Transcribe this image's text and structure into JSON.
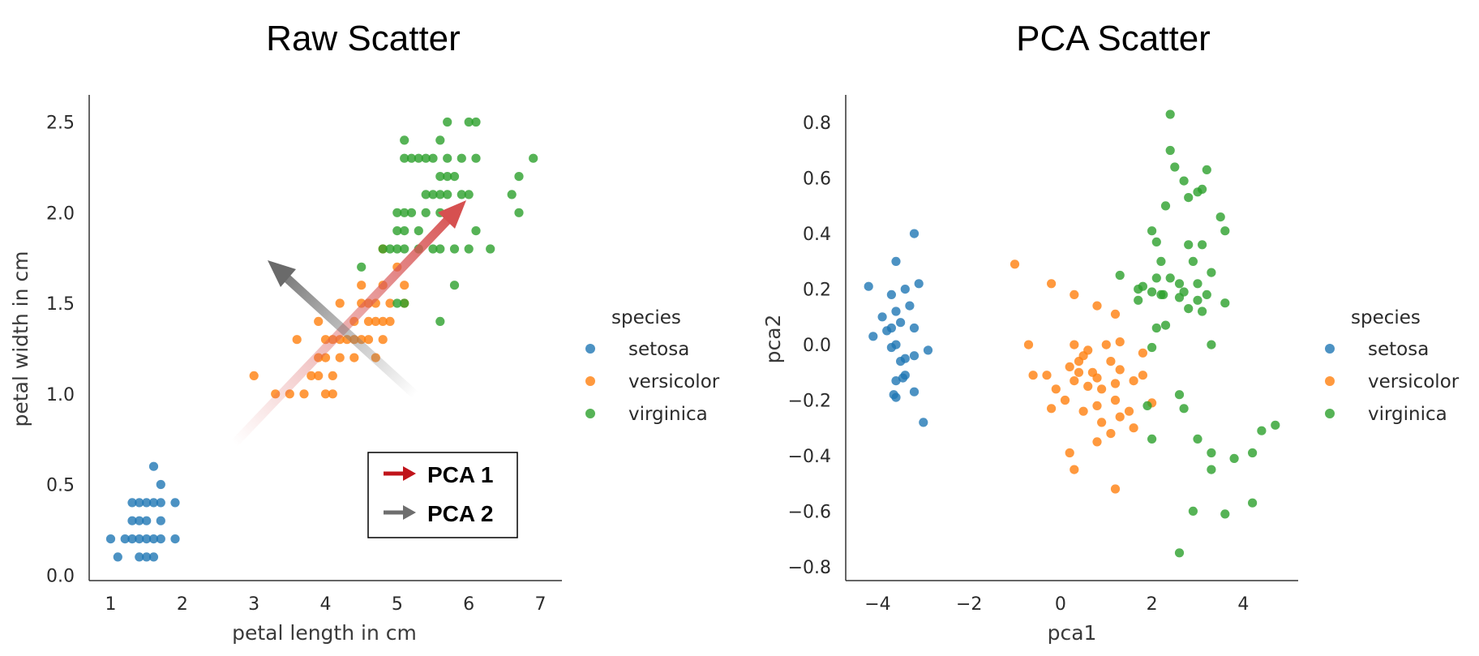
{
  "colors": {
    "setosa": "#1f77b4",
    "versicolor": "#ff7f0e",
    "virginica": "#2ca02c",
    "pca1_arrow": "#c0141b",
    "pca2_arrow": "#6e6e6e"
  },
  "chart_data": [
    {
      "type": "scatter",
      "title": "Raw Scatter",
      "xlabel": "petal length in cm",
      "ylabel": "petal width in cm",
      "xlim": [
        0.7,
        7.3
      ],
      "ylim": [
        -0.03,
        2.65
      ],
      "xticks": [
        1,
        2,
        3,
        4,
        5,
        6,
        7
      ],
      "xtick_labels": [
        "1",
        "2",
        "3",
        "4",
        "5",
        "6",
        "7"
      ],
      "yticks": [
        0.0,
        0.5,
        1.0,
        1.5,
        2.0,
        2.5
      ],
      "ytick_labels": [
        "0.0",
        "0.5",
        "1.0",
        "1.5",
        "2.0",
        "2.5"
      ],
      "grid": false,
      "legend": {
        "title": "species",
        "placement": "right",
        "entries": [
          "setosa",
          "versicolor",
          "virginica"
        ]
      },
      "series": [
        {
          "name": "setosa",
          "points": [
            [
              1.0,
              0.2
            ],
            [
              1.1,
              0.1
            ],
            [
              1.2,
              0.2
            ],
            [
              1.3,
              0.2
            ],
            [
              1.3,
              0.3
            ],
            [
              1.3,
              0.4
            ],
            [
              1.4,
              0.1
            ],
            [
              1.4,
              0.2
            ],
            [
              1.4,
              0.3
            ],
            [
              1.5,
              0.1
            ],
            [
              1.5,
              0.2
            ],
            [
              1.5,
              0.4
            ],
            [
              1.5,
              0.3
            ],
            [
              1.6,
              0.2
            ],
            [
              1.6,
              0.4
            ],
            [
              1.6,
              0.6
            ],
            [
              1.7,
              0.2
            ],
            [
              1.7,
              0.5
            ],
            [
              1.7,
              0.3
            ],
            [
              1.9,
              0.2
            ],
            [
              1.9,
              0.4
            ],
            [
              1.4,
              0.4
            ],
            [
              1.6,
              0.1
            ],
            [
              1.7,
              0.4
            ]
          ]
        },
        {
          "name": "versicolor",
          "points": [
            [
              3.0,
              1.1
            ],
            [
              3.3,
              1.0
            ],
            [
              3.5,
              1.0
            ],
            [
              3.6,
              1.3
            ],
            [
              3.7,
              1.0
            ],
            [
              3.8,
              1.1
            ],
            [
              3.9,
              1.1
            ],
            [
              3.9,
              1.2
            ],
            [
              3.9,
              1.4
            ],
            [
              4.0,
              1.0
            ],
            [
              4.0,
              1.2
            ],
            [
              4.0,
              1.3
            ],
            [
              4.1,
              1.0
            ],
            [
              4.1,
              1.3
            ],
            [
              4.2,
              1.2
            ],
            [
              4.2,
              1.3
            ],
            [
              4.2,
              1.5
            ],
            [
              4.3,
              1.3
            ],
            [
              4.4,
              1.2
            ],
            [
              4.4,
              1.3
            ],
            [
              4.4,
              1.4
            ],
            [
              4.5,
              1.3
            ],
            [
              4.5,
              1.5
            ],
            [
              4.5,
              1.6
            ],
            [
              4.6,
              1.3
            ],
            [
              4.6,
              1.4
            ],
            [
              4.6,
              1.5
            ],
            [
              4.7,
              1.2
            ],
            [
              4.7,
              1.4
            ],
            [
              4.7,
              1.5
            ],
            [
              4.8,
              1.4
            ],
            [
              4.8,
              1.8
            ],
            [
              4.9,
              1.5
            ],
            [
              5.0,
              1.7
            ],
            [
              5.1,
              1.6
            ],
            [
              4.1,
              1.1
            ],
            [
              4.8,
              1.6
            ],
            [
              4.8,
              1.3
            ],
            [
              4.9,
              1.4
            ],
            [
              5.1,
              1.5
            ]
          ]
        },
        {
          "name": "virginica",
          "points": [
            [
              4.5,
              1.7
            ],
            [
              4.8,
              1.8
            ],
            [
              4.9,
              1.8
            ],
            [
              5.0,
              1.5
            ],
            [
              5.0,
              1.9
            ],
            [
              5.0,
              2.0
            ],
            [
              5.1,
              1.5
            ],
            [
              5.1,
              1.8
            ],
            [
              5.1,
              1.9
            ],
            [
              5.1,
              2.0
            ],
            [
              5.1,
              2.3
            ],
            [
              5.1,
              2.4
            ],
            [
              5.2,
              2.0
            ],
            [
              5.2,
              2.3
            ],
            [
              5.3,
              1.9
            ],
            [
              5.3,
              2.3
            ],
            [
              5.4,
              2.1
            ],
            [
              5.4,
              2.3
            ],
            [
              5.5,
              1.8
            ],
            [
              5.5,
              2.1
            ],
            [
              5.6,
              1.4
            ],
            [
              5.6,
              1.8
            ],
            [
              5.6,
              2.1
            ],
            [
              5.6,
              2.2
            ],
            [
              5.6,
              2.4
            ],
            [
              5.7,
              2.1
            ],
            [
              5.7,
              2.3
            ],
            [
              5.7,
              2.5
            ],
            [
              5.8,
              1.6
            ],
            [
              5.8,
              1.8
            ],
            [
              5.8,
              2.2
            ],
            [
              5.9,
              2.1
            ],
            [
              5.9,
              2.3
            ],
            [
              6.0,
              1.8
            ],
            [
              6.0,
              2.5
            ],
            [
              6.1,
              1.9
            ],
            [
              6.1,
              2.3
            ],
            [
              6.1,
              2.5
            ],
            [
              6.3,
              1.8
            ],
            [
              6.6,
              2.1
            ],
            [
              6.7,
              2.0
            ],
            [
              6.7,
              2.2
            ],
            [
              6.9,
              2.3
            ],
            [
              5.0,
              1.8
            ],
            [
              5.5,
              2.3
            ],
            [
              5.6,
              2.0
            ],
            [
              5.3,
              1.8
            ],
            [
              5.4,
              2.0
            ],
            [
              6.0,
              2.1
            ],
            [
              5.7,
              2.2
            ]
          ]
        }
      ],
      "annotations": {
        "arrows": [
          {
            "name": "PCA 1",
            "from": [
              3.0,
              0.7
            ],
            "to": [
              6.0,
              2.1
            ]
          },
          {
            "name": "PCA 2",
            "from": [
              5.3,
              0.98
            ],
            "to": [
              3.2,
              1.75
            ]
          }
        ],
        "legend_box": [
          "PCA 1",
          "PCA 2"
        ]
      }
    },
    {
      "type": "scatter",
      "title": "PCA Scatter",
      "xlabel": "pca1",
      "ylabel": "pca2",
      "xlim": [
        -4.7,
        5.2
      ],
      "ylim": [
        -0.85,
        0.9
      ],
      "xticks": [
        -4,
        -2,
        0,
        2,
        4
      ],
      "xtick_labels": [
        "−4",
        "−2",
        "0",
        "2",
        "4"
      ],
      "yticks": [
        -0.8,
        -0.6,
        -0.4,
        -0.2,
        0.0,
        0.2,
        0.4,
        0.6,
        0.8
      ],
      "ytick_labels": [
        "−0.8",
        "−0.6",
        "−0.4",
        "−0.2",
        "0.0",
        "0.2",
        "0.4",
        "0.6",
        "0.8"
      ],
      "grid": false,
      "legend": {
        "title": "species",
        "placement": "right",
        "entries": [
          "setosa",
          "versicolor",
          "virginica"
        ]
      },
      "series": [
        {
          "name": "setosa",
          "points": [
            [
              -3.2,
              0.4
            ],
            [
              -3.6,
              0.3
            ],
            [
              -4.2,
              0.21
            ],
            [
              -3.7,
              0.18
            ],
            [
              -3.4,
              0.2
            ],
            [
              -3.1,
              0.22
            ],
            [
              -3.9,
              0.1
            ],
            [
              -3.6,
              0.12
            ],
            [
              -3.3,
              0.14
            ],
            [
              -3.7,
              0.06
            ],
            [
              -3.5,
              0.08
            ],
            [
              -3.2,
              0.06
            ],
            [
              -4.1,
              0.03
            ],
            [
              -3.8,
              0.05
            ],
            [
              -3.6,
              0.0
            ],
            [
              -3.4,
              -0.05
            ],
            [
              -3.2,
              -0.04
            ],
            [
              -2.9,
              -0.02
            ],
            [
              -3.7,
              -0.01
            ],
            [
              -3.5,
              -0.06
            ],
            [
              -3.6,
              -0.13
            ],
            [
              -3.4,
              -0.11
            ],
            [
              -3.6,
              -0.19
            ],
            [
              -3.2,
              -0.17
            ],
            [
              -3.0,
              -0.28
            ],
            [
              -3.65,
              -0.18
            ],
            [
              -3.45,
              -0.12
            ]
          ]
        },
        {
          "name": "versicolor",
          "points": [
            [
              -1.0,
              0.29
            ],
            [
              -0.2,
              0.22
            ],
            [
              0.3,
              0.18
            ],
            [
              0.8,
              0.14
            ],
            [
              1.2,
              0.11
            ],
            [
              -0.7,
              0.0
            ],
            [
              -0.3,
              -0.11
            ],
            [
              0.3,
              0.0
            ],
            [
              0.6,
              -0.02
            ],
            [
              1.0,
              0.0
            ],
            [
              1.3,
              0.01
            ],
            [
              1.8,
              -0.03
            ],
            [
              0.2,
              -0.08
            ],
            [
              0.4,
              -0.06
            ],
            [
              0.7,
              -0.1
            ],
            [
              1.1,
              -0.06
            ],
            [
              1.3,
              -0.09
            ],
            [
              -0.1,
              -0.16
            ],
            [
              0.3,
              -0.13
            ],
            [
              0.6,
              -0.15
            ],
            [
              0.9,
              -0.16
            ],
            [
              1.2,
              -0.14
            ],
            [
              1.6,
              -0.13
            ],
            [
              0.1,
              -0.2
            ],
            [
              0.5,
              -0.24
            ],
            [
              0.8,
              -0.22
            ],
            [
              1.2,
              -0.2
            ],
            [
              1.5,
              -0.24
            ],
            [
              2.0,
              -0.21
            ],
            [
              -0.2,
              -0.23
            ],
            [
              0.9,
              -0.28
            ],
            [
              1.3,
              -0.26
            ],
            [
              1.6,
              -0.3
            ],
            [
              0.8,
              -0.35
            ],
            [
              1.1,
              -0.32
            ],
            [
              0.2,
              -0.39
            ],
            [
              0.3,
              -0.45
            ],
            [
              1.2,
              -0.52
            ],
            [
              0.8,
              -0.12
            ],
            [
              0.4,
              -0.1
            ],
            [
              1.8,
              -0.11
            ],
            [
              0.5,
              -0.04
            ],
            [
              -0.6,
              -0.11
            ]
          ]
        },
        {
          "name": "virginica",
          "points": [
            [
              2.4,
              0.83
            ],
            [
              2.4,
              0.7
            ],
            [
              2.5,
              0.64
            ],
            [
              3.2,
              0.63
            ],
            [
              2.7,
              0.59
            ],
            [
              3.0,
              0.55
            ],
            [
              2.8,
              0.53
            ],
            [
              3.1,
              0.56
            ],
            [
              2.3,
              0.5
            ],
            [
              3.5,
              0.46
            ],
            [
              3.6,
              0.41
            ],
            [
              2.0,
              0.41
            ],
            [
              2.1,
              0.37
            ],
            [
              2.8,
              0.36
            ],
            [
              3.1,
              0.36
            ],
            [
              2.2,
              0.3
            ],
            [
              2.9,
              0.3
            ],
            [
              2.1,
              0.24
            ],
            [
              2.4,
              0.24
            ],
            [
              2.6,
              0.22
            ],
            [
              3.0,
              0.22
            ],
            [
              3.3,
              0.26
            ],
            [
              1.3,
              0.25
            ],
            [
              1.8,
              0.21
            ],
            [
              2.0,
              0.19
            ],
            [
              2.7,
              0.19
            ],
            [
              3.2,
              0.18
            ],
            [
              1.7,
              0.16
            ],
            [
              2.2,
              0.18
            ],
            [
              2.6,
              0.17
            ],
            [
              3.0,
              0.16
            ],
            [
              3.6,
              0.15
            ],
            [
              2.8,
              0.13
            ],
            [
              3.1,
              0.12
            ],
            [
              2.1,
              0.06
            ],
            [
              2.3,
              0.07
            ],
            [
              3.3,
              0.0
            ],
            [
              2.0,
              -0.01
            ],
            [
              1.9,
              -0.22
            ],
            [
              2.6,
              -0.18
            ],
            [
              2.7,
              -0.23
            ],
            [
              2.0,
              -0.34
            ],
            [
              3.0,
              -0.34
            ],
            [
              3.3,
              -0.39
            ],
            [
              3.3,
              -0.45
            ],
            [
              3.8,
              -0.41
            ],
            [
              4.2,
              -0.39
            ],
            [
              4.4,
              -0.31
            ],
            [
              4.7,
              -0.29
            ],
            [
              2.9,
              -0.6
            ],
            [
              3.6,
              -0.61
            ],
            [
              4.2,
              -0.57
            ],
            [
              2.6,
              -0.75
            ],
            [
              1.7,
              0.2
            ],
            [
              2.25,
              0.18
            ]
          ]
        }
      ]
    }
  ]
}
